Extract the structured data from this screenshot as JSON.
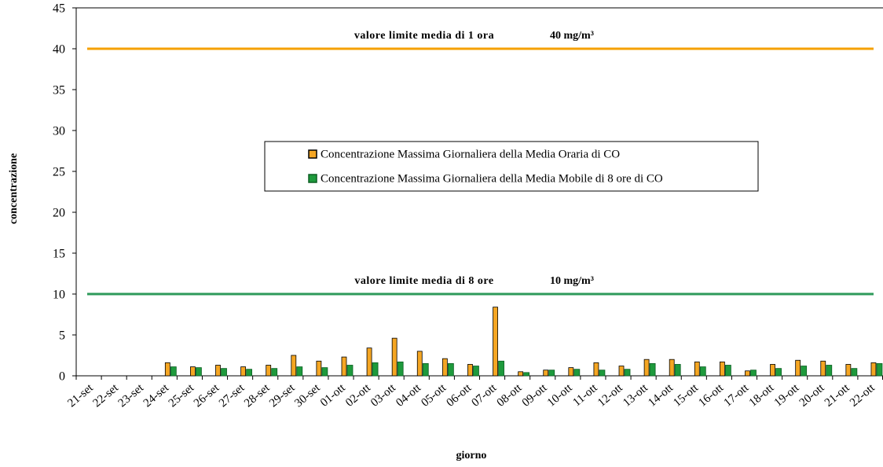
{
  "chart_data": {
    "type": "bar",
    "x_label": "giorno",
    "y_label": "concentrazione",
    "categories": [
      "21-set",
      "22-set",
      "23-set",
      "24-set",
      "25-set",
      "26-set",
      "27-set",
      "28-set",
      "29-set",
      "30-set",
      "01-ott",
      "02-ott",
      "03-ott",
      "04-ott",
      "05-ott",
      "06-ott",
      "07-ott",
      "08-ott",
      "09-ott",
      "10-ott",
      "11-ott",
      "12-ott",
      "13-ott",
      "14-ott",
      "15-ott",
      "16-ott",
      "17-ott",
      "18-ott",
      "19-ott",
      "20-ott",
      "21-ott",
      "22-ott"
    ],
    "series": [
      {
        "name": "Concentrazione Massima Giornaliera della Media Oraria di CO",
        "color": "#f5a623",
        "values": [
          0,
          0,
          0,
          1.6,
          1.1,
          1.3,
          1.1,
          1.3,
          2.5,
          1.8,
          2.3,
          3.4,
          4.6,
          3.0,
          2.1,
          1.4,
          8.4,
          0.5,
          0.7,
          1.0,
          1.6,
          1.2,
          2.0,
          2.0,
          1.7,
          1.7,
          0.6,
          1.4,
          1.9,
          1.8,
          1.4,
          1.6
        ]
      },
      {
        "name": "Concentrazione Massima Giornaliera della Media Mobile di 8 ore di CO",
        "color": "#1e9a3c",
        "values": [
          0,
          0,
          0,
          1.1,
          1.0,
          0.9,
          0.8,
          0.9,
          1.1,
          1.0,
          1.3,
          1.6,
          1.7,
          1.5,
          1.5,
          1.2,
          1.8,
          0.4,
          0.7,
          0.8,
          0.7,
          0.8,
          1.5,
          1.4,
          1.1,
          1.3,
          0.7,
          0.9,
          1.2,
          1.3,
          0.9,
          1.5
        ]
      }
    ],
    "limits": [
      {
        "value": 40,
        "label": "valore limite media di 1 ora",
        "value_label": "40 mg/m³",
        "color": "#f5a000"
      },
      {
        "value": 10,
        "label": "valore limite media di 8 ore",
        "value_label": "10 mg/m³",
        "color": "#2e9a5a"
      }
    ],
    "ylim": [
      0,
      45
    ],
    "yticks": [
      0,
      5,
      10,
      15,
      20,
      25,
      30,
      35,
      40,
      45
    ]
  }
}
